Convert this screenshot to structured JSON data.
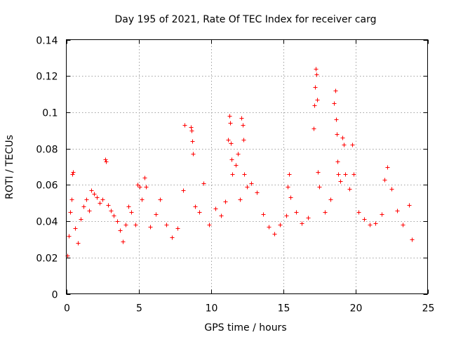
{
  "chart_data": {
    "type": "scatter",
    "title": "Day 195 of 2021, Rate Of TEC Index for receiver carg",
    "xlabel": "GPS time / hours",
    "ylabel": "ROTI / TECUs",
    "xlim": [
      0,
      25
    ],
    "ylim": [
      0,
      0.14
    ],
    "xticks": [
      0,
      5,
      10,
      15,
      20,
      25
    ],
    "xtick_labels": [
      "0",
      "5",
      "10",
      "15",
      "20",
      "25"
    ],
    "yticks": [
      0,
      0.02,
      0.04,
      0.06,
      0.08,
      0.1,
      0.12,
      0.14
    ],
    "ytick_labels": [
      "0",
      "0.02",
      "0.04",
      "0.06",
      "0.08",
      "0.1",
      "0.12",
      "0.14"
    ],
    "grid": true,
    "marker": "+",
    "color": "#ff0000",
    "series": [
      {
        "name": "ROTI",
        "points": [
          [
            0.05,
            0.021
          ],
          [
            0.15,
            0.032
          ],
          [
            0.25,
            0.045
          ],
          [
            0.35,
            0.052
          ],
          [
            0.4,
            0.066
          ],
          [
            0.45,
            0.067
          ],
          [
            0.6,
            0.036
          ],
          [
            0.8,
            0.028
          ],
          [
            1.0,
            0.041
          ],
          [
            1.2,
            0.048
          ],
          [
            1.4,
            0.052
          ],
          [
            1.6,
            0.046
          ],
          [
            1.7,
            0.057
          ],
          [
            1.9,
            0.055
          ],
          [
            2.1,
            0.053
          ],
          [
            2.3,
            0.05
          ],
          [
            2.5,
            0.052
          ],
          [
            2.7,
            0.074
          ],
          [
            2.75,
            0.073
          ],
          [
            2.9,
            0.049
          ],
          [
            3.1,
            0.046
          ],
          [
            3.3,
            0.043
          ],
          [
            3.5,
            0.04
          ],
          [
            3.7,
            0.035
          ],
          [
            3.9,
            0.029
          ],
          [
            4.1,
            0.038
          ],
          [
            4.3,
            0.048
          ],
          [
            4.5,
            0.045
          ],
          [
            4.8,
            0.038
          ],
          [
            4.95,
            0.06
          ],
          [
            5.05,
            0.059
          ],
          [
            5.2,
            0.052
          ],
          [
            5.4,
            0.064
          ],
          [
            5.5,
            0.059
          ],
          [
            5.8,
            0.037
          ],
          [
            6.2,
            0.044
          ],
          [
            6.5,
            0.052
          ],
          [
            6.9,
            0.038
          ],
          [
            7.3,
            0.031
          ],
          [
            7.7,
            0.036
          ],
          [
            8.1,
            0.057
          ],
          [
            8.2,
            0.093
          ],
          [
            8.6,
            0.092
          ],
          [
            8.65,
            0.09
          ],
          [
            8.7,
            0.084
          ],
          [
            8.75,
            0.077
          ],
          [
            8.9,
            0.048
          ],
          [
            9.2,
            0.045
          ],
          [
            9.5,
            0.061
          ],
          [
            9.9,
            0.038
          ],
          [
            10.3,
            0.047
          ],
          [
            10.7,
            0.043
          ],
          [
            11.0,
            0.051
          ],
          [
            11.2,
            0.085
          ],
          [
            11.3,
            0.098
          ],
          [
            11.35,
            0.094
          ],
          [
            11.4,
            0.083
          ],
          [
            11.45,
            0.074
          ],
          [
            11.5,
            0.066
          ],
          [
            11.7,
            0.071
          ],
          [
            11.85,
            0.077
          ],
          [
            12.0,
            0.052
          ],
          [
            12.1,
            0.097
          ],
          [
            12.2,
            0.093
          ],
          [
            12.25,
            0.085
          ],
          [
            12.3,
            0.066
          ],
          [
            12.5,
            0.059
          ],
          [
            12.8,
            0.061
          ],
          [
            13.2,
            0.056
          ],
          [
            13.6,
            0.044
          ],
          [
            14.0,
            0.037
          ],
          [
            14.4,
            0.033
          ],
          [
            14.8,
            0.038
          ],
          [
            15.2,
            0.043
          ],
          [
            15.3,
            0.059
          ],
          [
            15.4,
            0.066
          ],
          [
            15.5,
            0.053
          ],
          [
            15.9,
            0.045
          ],
          [
            16.3,
            0.039
          ],
          [
            16.7,
            0.042
          ],
          [
            17.1,
            0.091
          ],
          [
            17.15,
            0.104
          ],
          [
            17.2,
            0.114
          ],
          [
            17.25,
            0.124
          ],
          [
            17.3,
            0.121
          ],
          [
            17.35,
            0.107
          ],
          [
            17.4,
            0.067
          ],
          [
            17.5,
            0.059
          ],
          [
            17.9,
            0.045
          ],
          [
            18.3,
            0.052
          ],
          [
            18.5,
            0.105
          ],
          [
            18.6,
            0.112
          ],
          [
            18.65,
            0.096
          ],
          [
            18.7,
            0.088
          ],
          [
            18.75,
            0.073
          ],
          [
            18.8,
            0.066
          ],
          [
            18.95,
            0.062
          ],
          [
            19.1,
            0.086
          ],
          [
            19.2,
            0.082
          ],
          [
            19.3,
            0.066
          ],
          [
            19.6,
            0.058
          ],
          [
            19.8,
            0.082
          ],
          [
            19.9,
            0.066
          ],
          [
            20.2,
            0.045
          ],
          [
            20.6,
            0.041
          ],
          [
            21.0,
            0.038
          ],
          [
            21.4,
            0.039
          ],
          [
            21.8,
            0.044
          ],
          [
            22.0,
            0.063
          ],
          [
            22.2,
            0.07
          ],
          [
            22.5,
            0.058
          ],
          [
            22.9,
            0.046
          ],
          [
            23.3,
            0.038
          ],
          [
            23.7,
            0.049
          ],
          [
            23.9,
            0.03
          ]
        ]
      }
    ]
  }
}
